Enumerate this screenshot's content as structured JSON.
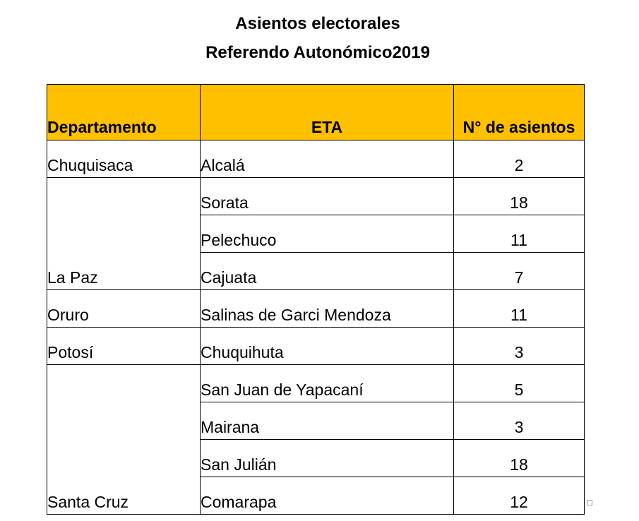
{
  "document": {
    "title": "Asientos electorales",
    "subtitle": "Referendo Autonómico2019"
  },
  "table": {
    "headers": {
      "department": "Departamento",
      "eta": "ETA",
      "seats": "N° de asientos"
    },
    "header_color": "#ffc000",
    "groups": [
      {
        "department": "Chuquisaca",
        "rows": [
          {
            "eta": "Alcalá",
            "seats": "2"
          }
        ]
      },
      {
        "department": "La Paz",
        "rows": [
          {
            "eta": "Sorata",
            "seats": "18"
          },
          {
            "eta": "Pelechuco",
            "seats": "11"
          },
          {
            "eta": "Cajuata",
            "seats": "7"
          }
        ]
      },
      {
        "department": "Oruro",
        "rows": [
          {
            "eta": "Salinas de Garci Mendoza",
            "seats": "11"
          }
        ]
      },
      {
        "department": "Potosí",
        "rows": [
          {
            "eta": "Chuquihuta",
            "seats": "3"
          }
        ]
      },
      {
        "department": "Santa Cruz",
        "rows": [
          {
            "eta": "San Juan de Yapacaní",
            "seats": "5"
          },
          {
            "eta": "Mairana",
            "seats": "3"
          },
          {
            "eta": "San Julián",
            "seats": "18"
          },
          {
            "eta": "Comarapa",
            "seats": "12"
          }
        ]
      }
    ]
  }
}
